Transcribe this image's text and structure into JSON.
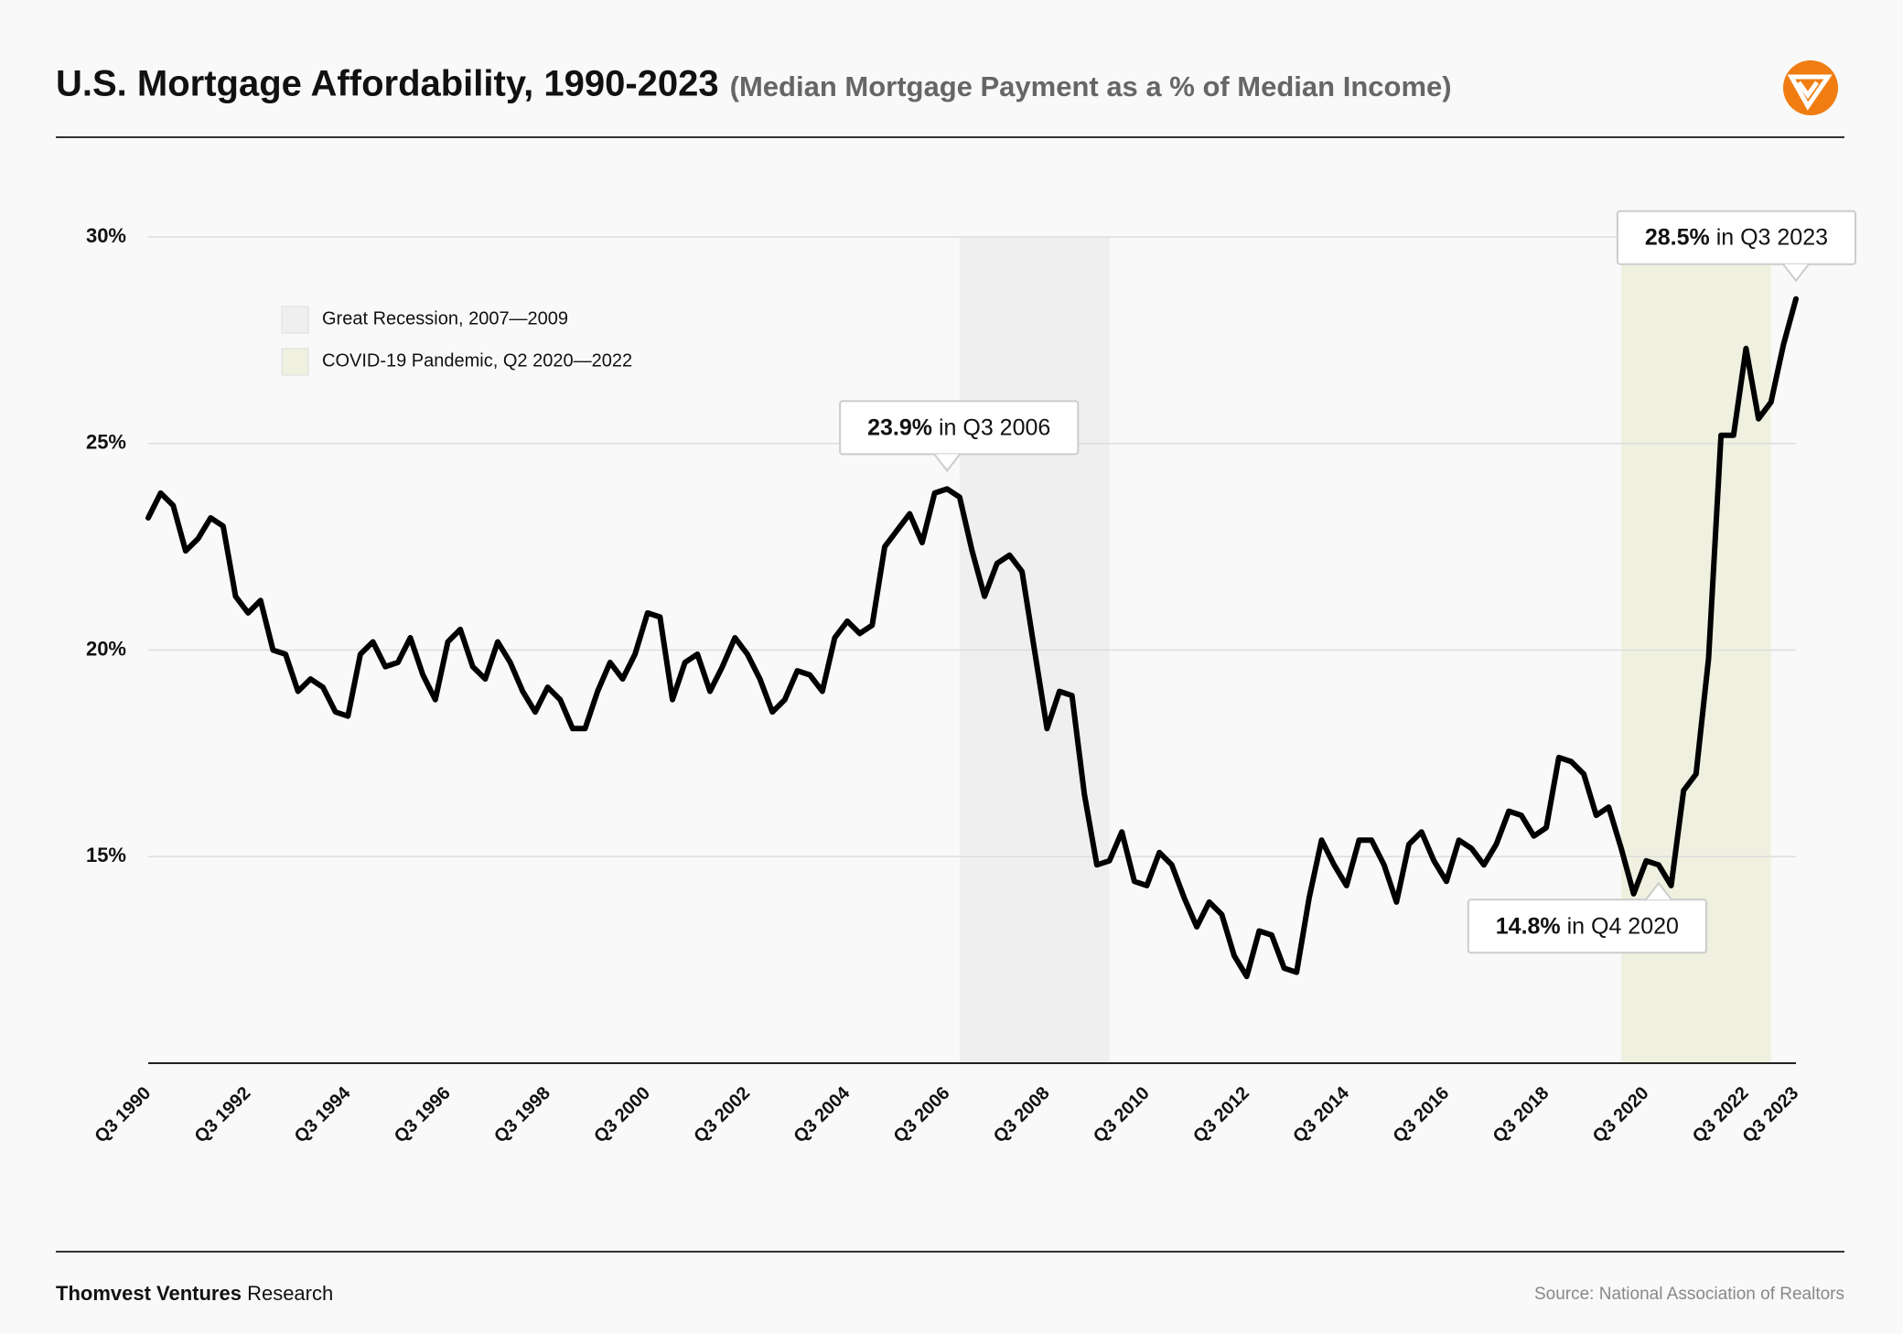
{
  "chart_data": {
    "type": "line",
    "title": "U.S. Mortgage Affordability, 1990-2023",
    "subtitle": "(Median Mortgage Payment as a % of Median Income)",
    "source": "Source: National Association of Realtors",
    "footer_brand": "Thomvest Ventures",
    "footer_label": "Research",
    "color": "#000000",
    "categories": [
      "Q3 1990",
      null,
      null,
      null,
      null,
      null,
      null,
      null,
      "Q3 1992",
      null,
      null,
      null,
      null,
      null,
      null,
      null,
      "Q3 1994",
      null,
      null,
      null,
      null,
      null,
      null,
      null,
      "Q3 1996",
      null,
      null,
      null,
      null,
      null,
      null,
      null,
      "Q3 1998",
      null,
      null,
      null,
      null,
      null,
      null,
      null,
      "Q3 2000",
      null,
      null,
      null,
      null,
      null,
      null,
      null,
      "Q3 2002",
      null,
      null,
      null,
      null,
      null,
      null,
      null,
      "Q3 2004",
      null,
      null,
      null,
      null,
      null,
      null,
      null,
      "Q3 2006",
      null,
      null,
      null,
      null,
      null,
      null,
      null,
      "Q3 2008",
      null,
      null,
      null,
      null,
      null,
      null,
      null,
      "Q3 2010",
      null,
      null,
      null,
      null,
      null,
      null,
      null,
      "Q3 2012",
      null,
      null,
      null,
      null,
      null,
      null,
      null,
      "Q3 2014",
      null,
      null,
      null,
      null,
      null,
      null,
      null,
      "Q3 2016",
      null,
      null,
      null,
      null,
      null,
      null,
      null,
      "Q3 2018",
      null,
      null,
      null,
      null,
      null,
      null,
      null,
      "Q3 2020",
      null,
      null,
      null,
      null,
      null,
      null,
      null,
      "Q3 2022",
      null,
      null,
      null,
      "Q3 2023"
    ],
    "values": [
      23.2,
      23.8,
      23.5,
      22.4,
      22.7,
      23.2,
      23.0,
      21.3,
      20.9,
      21.2,
      20.0,
      19.9,
      19.0,
      19.3,
      19.1,
      18.5,
      18.4,
      19.9,
      20.2,
      19.6,
      19.7,
      20.3,
      19.4,
      18.8,
      20.2,
      20.5,
      19.6,
      19.3,
      20.2,
      19.7,
      19.0,
      18.5,
      19.1,
      18.8,
      18.1,
      18.1,
      19.0,
      19.7,
      19.3,
      19.9,
      20.9,
      20.8,
      18.8,
      19.7,
      19.9,
      19.0,
      19.6,
      20.3,
      19.9,
      19.3,
      18.5,
      18.8,
      19.5,
      19.4,
      19.0,
      20.3,
      20.7,
      20.4,
      20.6,
      22.5,
      22.9,
      23.3,
      22.6,
      23.8,
      23.9,
      23.7,
      22.4,
      21.3,
      22.1,
      22.3,
      21.9,
      20.0,
      18.1,
      19.0,
      18.9,
      16.5,
      14.8,
      14.9,
      15.6,
      14.4,
      14.3,
      15.1,
      14.8,
      14.0,
      13.3,
      13.9,
      13.6,
      12.6,
      12.1,
      13.2,
      13.1,
      12.3,
      12.2,
      14.0,
      15.4,
      14.8,
      14.3,
      15.4,
      15.4,
      14.8,
      13.9,
      15.3,
      15.6,
      14.9,
      14.4,
      15.4,
      15.2,
      14.8,
      15.3,
      16.1,
      16.0,
      15.5,
      15.7,
      17.4,
      17.3,
      17.0,
      16.0,
      16.2,
      15.2,
      14.1,
      14.9,
      14.8,
      14.3,
      16.6,
      17.0,
      19.8,
      25.2,
      25.2,
      27.3,
      25.6,
      26.0,
      27.4,
      28.5
    ],
    "ylim": [
      10,
      30
    ],
    "yticks": [
      {
        "value": 15,
        "label": "15%"
      },
      {
        "value": 20,
        "label": "20%"
      },
      {
        "value": 25,
        "label": "25%"
      },
      {
        "value": 30,
        "label": "30%"
      }
    ],
    "grid": true,
    "shaded_regions": [
      {
        "label": "Great Recession, 2007—2009",
        "from": 65,
        "to": 77,
        "color": "#efefef"
      },
      {
        "label": "COVID-19 Pandemic, Q2 2020—2022",
        "from": 118,
        "to": 130,
        "color": "#eff0e0"
      }
    ],
    "annotations": [
      {
        "index": 64,
        "value": 23.9,
        "value_label": "23.9%",
        "text": "in Q3 2006"
      },
      {
        "index": 132,
        "value": 28.5,
        "value_label": "28.5%",
        "text": "in Q3 2023"
      },
      {
        "index": 121,
        "value": 14.8,
        "value_label": "14.8%",
        "text": "in Q4 2020"
      }
    ]
  }
}
